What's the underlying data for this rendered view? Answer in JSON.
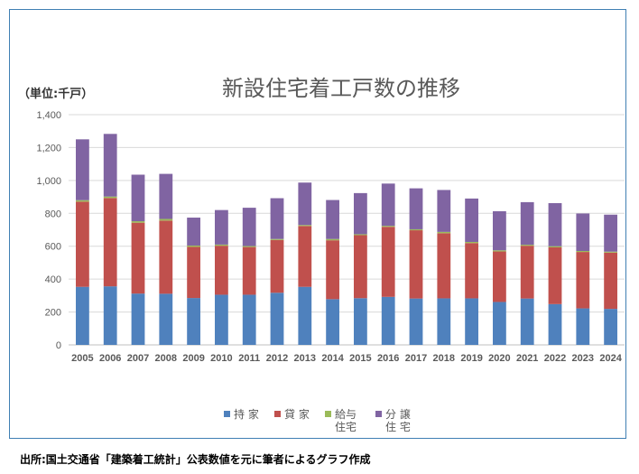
{
  "chart_data": {
    "type": "bar",
    "stacked": true,
    "title": "新設住宅着工戸数の推移",
    "unit_label": "（単位:千戸）",
    "categories": [
      "2005",
      "2006",
      "2007",
      "2008",
      "2009",
      "2010",
      "2011",
      "2012",
      "2013",
      "2014",
      "2015",
      "2016",
      "2017",
      "2018",
      "2019",
      "2020",
      "2021",
      "2022",
      "2023",
      "2024"
    ],
    "ylim": [
      0,
      1400
    ],
    "yticks": [
      "0",
      "200",
      "400",
      "600",
      "800",
      "1,000",
      "1,200",
      "1,400"
    ],
    "ytick_values": [
      0,
      200,
      400,
      600,
      800,
      1000,
      1200,
      1400
    ],
    "grid": true,
    "legend_position": "bottom",
    "series": [
      {
        "name": "持 家",
        "legend_lines": [
          "持 家"
        ],
        "color": "#4f81bd",
        "values": [
          353,
          356,
          312,
          311,
          285,
          305,
          305,
          317,
          353,
          278,
          284,
          292,
          282,
          283,
          283,
          261,
          282,
          248,
          222,
          219
        ]
      },
      {
        "name": "貸 家",
        "legend_lines": [
          "貸 家"
        ],
        "color": "#c0504d",
        "values": [
          518,
          537,
          431,
          445,
          311,
          298,
          290,
          321,
          370,
          358,
          383,
          426,
          415,
          396,
          336,
          307,
          321,
          345,
          343,
          342
        ]
      },
      {
        "name": "給与住宅",
        "legend_lines": [
          "給与",
          "住宅"
        ],
        "color": "#9bbb59",
        "values": [
          9,
          9,
          9,
          10,
          8,
          7,
          6,
          6,
          6,
          8,
          6,
          6,
          6,
          8,
          7,
          7,
          6,
          7,
          6,
          6
        ]
      },
      {
        "name": "分 譲 住 宅",
        "legend_lines": [
          "分 譲",
          "住 宅"
        ],
        "color": "#8064a2",
        "values": [
          370,
          381,
          283,
          274,
          170,
          210,
          233,
          248,
          258,
          237,
          250,
          257,
          249,
          255,
          264,
          238,
          259,
          262,
          228,
          225
        ]
      }
    ]
  },
  "source_note": "出所:国土交通省「建築着工統計」公表数値を元に筆者によるグラフ作成"
}
